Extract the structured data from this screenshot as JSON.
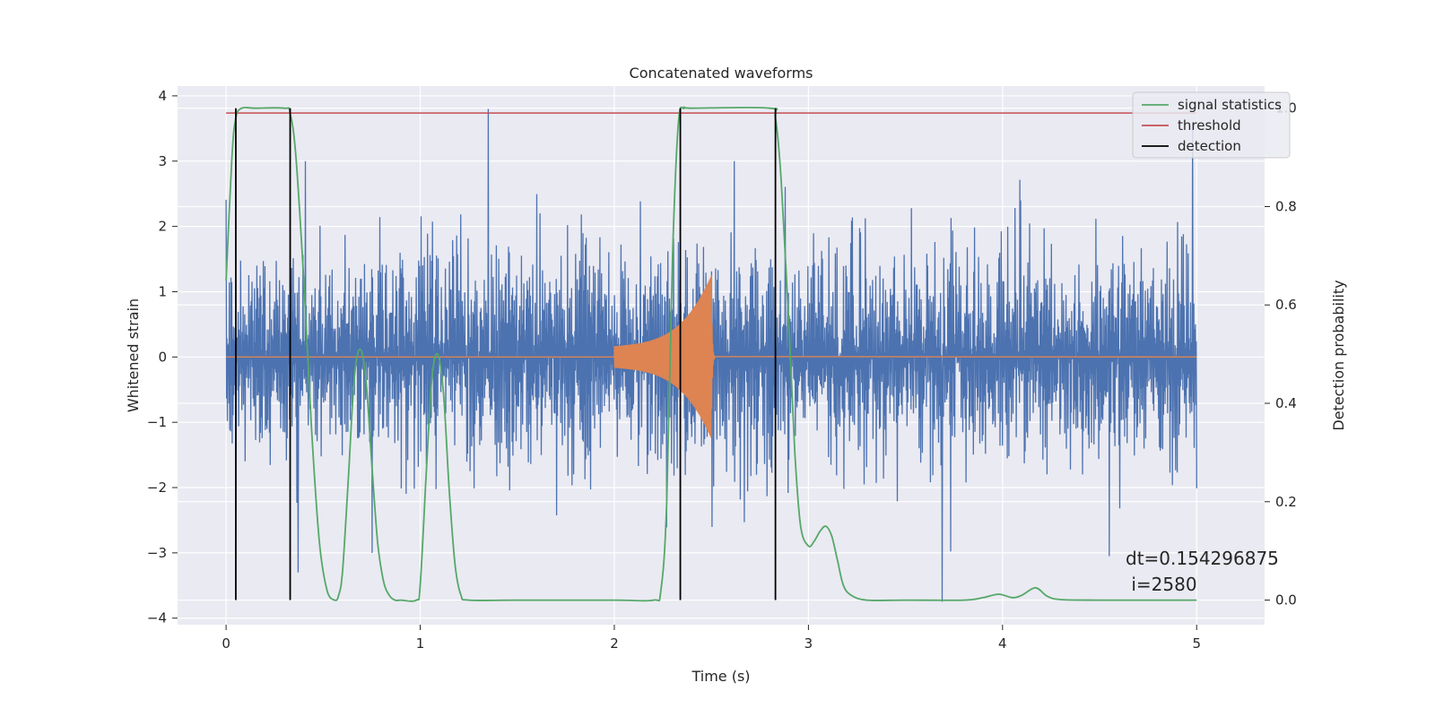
{
  "chart_data": {
    "type": "line",
    "title": "Concatenated waveforms",
    "xlabel": "Time (s)",
    "ylabel_left": "Whitened strain",
    "ylabel_right": "Detection probability",
    "xlim": [
      -0.25,
      5.35
    ],
    "ylim_left": [
      -4.1,
      4.15
    ],
    "ylim_right": [
      -0.05,
      1.045
    ],
    "xticks": [
      0,
      1,
      2,
      3,
      4,
      5
    ],
    "xtick_labels": [
      "0",
      "1",
      "2",
      "3",
      "4",
      "5"
    ],
    "yticks_left": [
      4,
      3,
      2,
      1,
      0,
      -1,
      -2,
      -3,
      -4
    ],
    "ytick_labels_left": [
      "4",
      "3",
      "2",
      "1",
      "0",
      "−1",
      "−2",
      "−3",
      "−4"
    ],
    "yticks_right": [
      0.0,
      0.2,
      0.4,
      0.6,
      0.8,
      1.0
    ],
    "ytick_labels_right": [
      "0.0",
      "0.2",
      "0.4",
      "0.6",
      "0.8",
      "1.0"
    ],
    "grid": true,
    "legend_position": "top-right",
    "legend": [
      "signal statistics",
      "threshold",
      "detection"
    ],
    "colors": {
      "strain": "#4c72b0",
      "injection": "#dd8452",
      "signal_statistics": "#55a868",
      "threshold": "#c44e52",
      "detection": "#000000",
      "background": "#eaeaf2",
      "grid": "#ffffff"
    },
    "strain_series": {
      "x_range": [
        0,
        5
      ],
      "typical_amplitude": 1.4,
      "extreme_peaks": [
        {
          "x": 1.35,
          "y": 3.8
        },
        {
          "x": 4.98,
          "y": 3.6
        },
        {
          "x": 0.05,
          "y": -3.2
        },
        {
          "x": 0.37,
          "y": -3.3
        },
        {
          "x": 3.69,
          "y": -3.75
        },
        {
          "x": 4.55,
          "y": -3.05
        }
      ]
    },
    "injection_series": {
      "x_range": [
        2.0,
        2.52
      ],
      "start_amplitude": 0.3,
      "peak_x": 2.5,
      "peak_amplitude": 1.25
    },
    "threshold": {
      "x_range": [
        0,
        5
      ],
      "value": 0.99
    },
    "detections": [
      0.05,
      0.33,
      2.34,
      2.83
    ],
    "signal_statistics": {
      "x": [
        0,
        0.03,
        0.05,
        0.08,
        0.15,
        0.3,
        0.33,
        0.36,
        0.4,
        0.44,
        0.48,
        0.52,
        0.56,
        0.58,
        0.6,
        0.63,
        0.66,
        0.69,
        0.72,
        0.75,
        0.78,
        0.81,
        0.84,
        0.87,
        0.9,
        0.98,
        1.0,
        1.03,
        1.06,
        1.09,
        1.12,
        1.15,
        1.18,
        1.21,
        1.25,
        1.5,
        2.0,
        2.2,
        2.24,
        2.27,
        2.3,
        2.33,
        2.36,
        2.4,
        2.8,
        2.83,
        2.86,
        2.9,
        2.93,
        2.96,
        3.0,
        3.03,
        3.06,
        3.09,
        3.12,
        3.15,
        3.18,
        3.22,
        3.3,
        3.5,
        3.8,
        3.9,
        3.98,
        4.05,
        4.1,
        4.17,
        4.23,
        4.3,
        4.5,
        5.0
      ],
      "y": [
        0.65,
        0.9,
        0.98,
        1.0,
        1.0,
        1.0,
        0.99,
        0.9,
        0.65,
        0.35,
        0.12,
        0.02,
        0.0,
        0.01,
        0.06,
        0.25,
        0.45,
        0.51,
        0.45,
        0.28,
        0.12,
        0.04,
        0.01,
        0.0,
        0.0,
        0.0,
        0.03,
        0.25,
        0.45,
        0.5,
        0.42,
        0.22,
        0.07,
        0.01,
        0.0,
        0.0,
        0.0,
        0.0,
        0.02,
        0.2,
        0.7,
        0.97,
        1.0,
        1.0,
        1.0,
        0.98,
        0.85,
        0.55,
        0.3,
        0.15,
        0.11,
        0.12,
        0.14,
        0.15,
        0.13,
        0.08,
        0.03,
        0.01,
        0.0,
        0.0,
        0.0,
        0.005,
        0.012,
        0.005,
        0.01,
        0.025,
        0.008,
        0.001,
        0.0,
        0.0
      ]
    },
    "annotation": {
      "line1": "dt=0.154296875",
      "line2": " i=2580"
    }
  }
}
